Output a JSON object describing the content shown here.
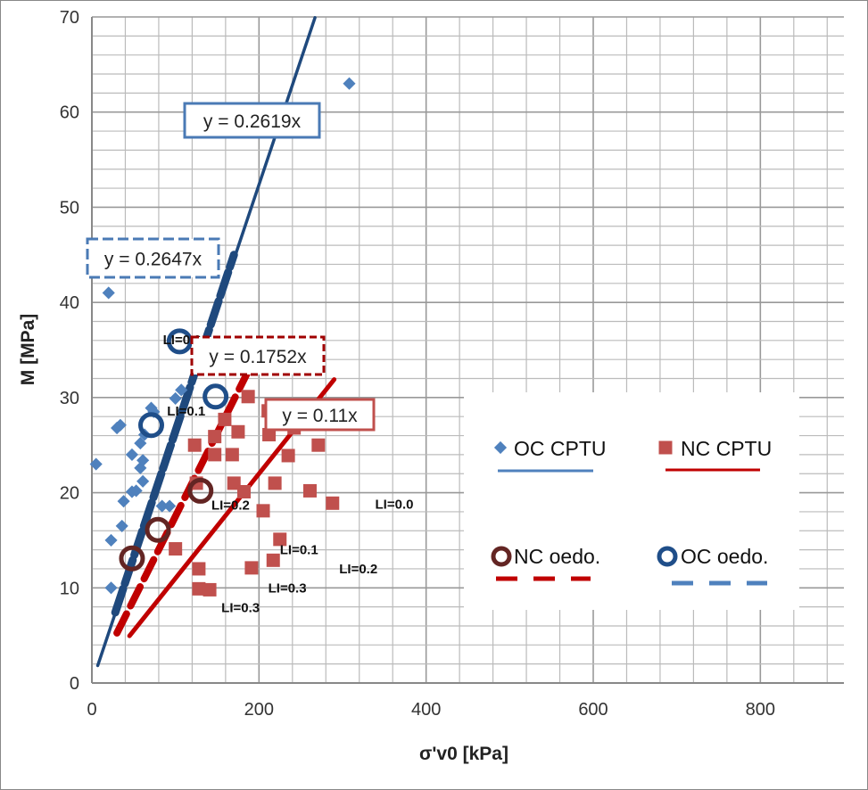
{
  "chart_data": {
    "type": "scatter",
    "xlabel": "σ'v0 [kPa]",
    "ylabel": "M [MPa]",
    "xlim": [
      0,
      900
    ],
    "ylim": [
      0,
      70
    ],
    "xticks": [
      0,
      200,
      400,
      600,
      800
    ],
    "yticks": [
      0,
      10,
      20,
      30,
      40,
      50,
      60,
      70
    ],
    "grid": true,
    "legend_position": "center-right",
    "colors": {
      "oc_cptu": "#4f81bd",
      "nc_cptu": "#c0504d",
      "nc_oedo": "#632523",
      "oc_oedo": "#1f4e89",
      "nc_line": "#c00000",
      "oc_line": "#1f497d"
    },
    "series": [
      {
        "name": "OC CPTU",
        "marker": "diamond",
        "points": [
          [
            5,
            23
          ],
          [
            20,
            41
          ],
          [
            23,
            15
          ],
          [
            23,
            10
          ],
          [
            30,
            26.8
          ],
          [
            34,
            27.1
          ],
          [
            36,
            16.5
          ],
          [
            38,
            19.1
          ],
          [
            48,
            24
          ],
          [
            48,
            20.1
          ],
          [
            53,
            20.2
          ],
          [
            58,
            25.2
          ],
          [
            58,
            22.6
          ],
          [
            61,
            23.4
          ],
          [
            61,
            21.2
          ],
          [
            63,
            26.1
          ],
          [
            71,
            28.9
          ],
          [
            74,
            28.5
          ],
          [
            84,
            18.6
          ],
          [
            93,
            18.6
          ],
          [
            100,
            29.9
          ],
          [
            107,
            30.8
          ],
          [
            308,
            63
          ]
        ]
      },
      {
        "name": "NC CPTU",
        "marker": "square",
        "points": [
          [
            100,
            14.1
          ],
          [
            123,
            25
          ],
          [
            125,
            21
          ],
          [
            128,
            12
          ],
          [
            128,
            9.9
          ],
          [
            141,
            9.8
          ],
          [
            147,
            25.9
          ],
          [
            147,
            24
          ],
          [
            159,
            27.7
          ],
          [
            168,
            24
          ],
          [
            170,
            21
          ],
          [
            175,
            26.4
          ],
          [
            182,
            20.1
          ],
          [
            187,
            30.1
          ],
          [
            191,
            12.1
          ],
          [
            205,
            18.1
          ],
          [
            211,
            28.6
          ],
          [
            212,
            26.1
          ],
          [
            217,
            12.9
          ],
          [
            219,
            21
          ],
          [
            225,
            15.1
          ],
          [
            235,
            23.9
          ],
          [
            242,
            26.8
          ],
          [
            261,
            20.2
          ],
          [
            271,
            25
          ],
          [
            288,
            18.9
          ]
        ]
      },
      {
        "name": "NC oedo.",
        "marker": "circle",
        "points": [
          [
            48,
            13.1
          ],
          [
            79,
            16.1
          ],
          [
            130,
            20.2
          ]
        ]
      },
      {
        "name": "OC oedo.",
        "marker": "circle",
        "points": [
          [
            105,
            35.9
          ],
          [
            71,
            27.1
          ],
          [
            148,
            30.1
          ]
        ]
      }
    ],
    "trendlines": [
      {
        "series": "OC CPTU",
        "slope": 0.2619,
        "x_range": [
          7,
          267
        ],
        "style": "solid",
        "label": "y = 0.2619x"
      },
      {
        "series": "OC oedo.",
        "slope": 0.2647,
        "x_range": [
          28,
          170
        ],
        "style": "dashed",
        "label": "y = 0.2647x"
      },
      {
        "series": "NC oedo.",
        "slope": 0.1752,
        "x_range": [
          30,
          190
        ],
        "style": "dashed",
        "label": "y = 0.1752x"
      },
      {
        "series": "NC CPTU",
        "slope": 0.11,
        "x_range": [
          45,
          290
        ],
        "style": "solid",
        "label": "y = 0.11x"
      }
    ],
    "annotations": [
      {
        "text": "LI=0.0",
        "x": 85,
        "y": 36.1
      },
      {
        "text": "LI=0.1",
        "x": 90,
        "y": 28.6
      },
      {
        "text": "LI=0.2",
        "x": 143,
        "y": 18.7
      },
      {
        "text": "LI=0.0",
        "x": 339,
        "y": 18.8
      },
      {
        "text": "LI=0.1",
        "x": 225,
        "y": 14
      },
      {
        "text": "LI=0.2",
        "x": 296,
        "y": 12
      },
      {
        "text": "LI=0.3",
        "x": 211,
        "y": 10
      },
      {
        "text": "LI=0.3",
        "x": 155,
        "y": 7.9
      }
    ]
  }
}
